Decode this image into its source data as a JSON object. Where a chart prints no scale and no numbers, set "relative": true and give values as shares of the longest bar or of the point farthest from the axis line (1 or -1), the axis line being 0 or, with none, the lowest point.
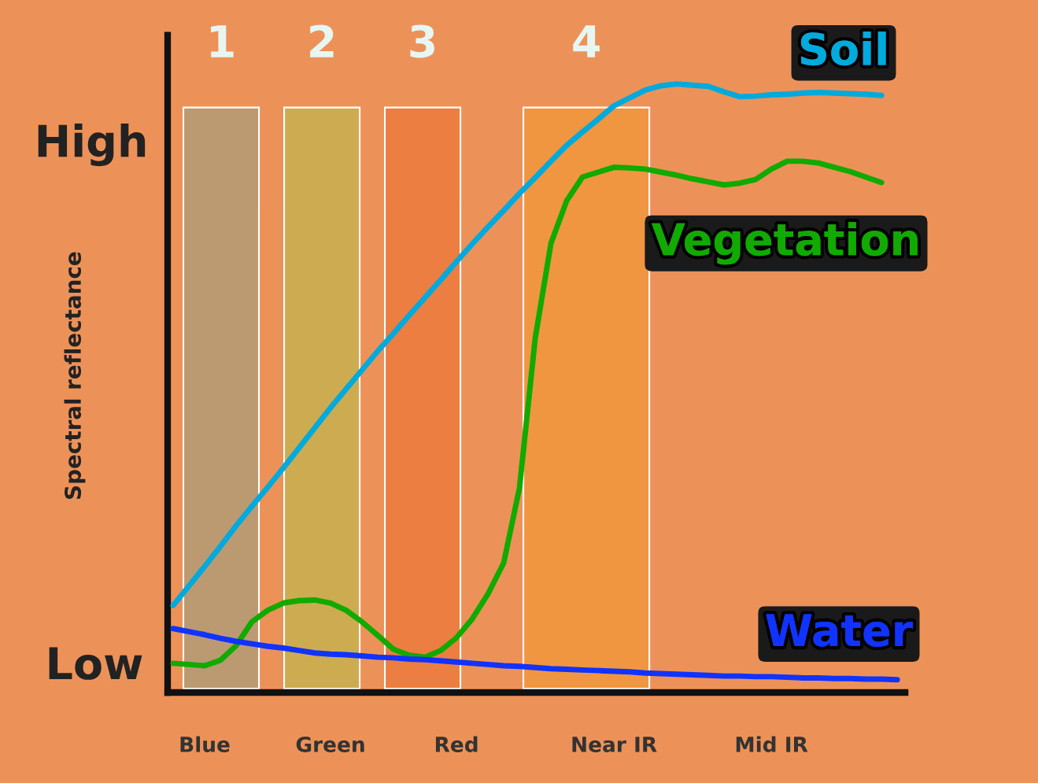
{
  "chart_data": {
    "type": "line",
    "relative": true,
    "ylabel": "Spectral reflectance",
    "categories": [
      null,
      null,
      "Blue",
      null,
      null,
      null,
      null,
      null,
      null,
      null,
      "Green",
      null,
      null,
      null,
      null,
      null,
      null,
      null,
      "Red",
      null,
      null,
      null,
      null,
      null,
      null,
      null,
      null,
      null,
      "Near IR",
      null,
      null,
      null,
      null,
      null,
      null,
      null,
      null,
      null,
      "Mid IR",
      null,
      null,
      null,
      null,
      null,
      null,
      null,
      null
    ],
    "annotations": [
      "High",
      "Low",
      "1",
      "2",
      "3",
      "4"
    ],
    "grid": false,
    "legend": false,
    "marker": "none",
    "line_style": "solid",
    "series": [
      {
        "name": "Soil",
        "color": "#00aadd",
        "values": [
          0.143,
          0.175,
          0.207,
          0.24,
          0.274,
          0.306,
          0.337,
          0.369,
          0.402,
          0.435,
          0.468,
          0.499,
          0.53,
          0.561,
          0.59,
          0.62,
          0.649,
          0.678,
          0.708,
          0.737,
          0.765,
          0.792,
          0.82,
          0.846,
          0.873,
          0.899,
          0.921,
          0.942,
          0.964,
          0.977,
          0.99,
          0.997,
          1.0,
          0.998,
          0.996,
          0.987,
          0.979,
          0.98,
          0.982,
          0.983,
          0.985,
          0.986,
          0.985,
          0.984,
          0.983,
          0.981,
          null
        ]
      },
      {
        "name": "Vegetation",
        "color": "#11aa00",
        "values": [
          0.048,
          0.046,
          0.044,
          0.053,
          0.077,
          0.116,
          0.135,
          0.147,
          0.151,
          0.152,
          0.147,
          0.135,
          0.116,
          0.094,
          0.071,
          0.061,
          0.058,
          0.069,
          0.09,
          0.121,
          0.162,
          0.213,
          0.336,
          0.582,
          0.738,
          0.808,
          0.847,
          0.855,
          0.863,
          0.862,
          0.86,
          0.855,
          0.85,
          0.844,
          0.839,
          0.834,
          0.837,
          0.843,
          0.86,
          0.873,
          0.873,
          0.87,
          0.863,
          0.856,
          0.847,
          0.838,
          null
        ]
      },
      {
        "name": "Water",
        "color": "#1133ff",
        "values": [
          0.105,
          0.1,
          0.095,
          0.089,
          0.084,
          0.08,
          0.076,
          0.073,
          0.069,
          0.065,
          0.063,
          0.062,
          0.06,
          0.058,
          0.057,
          0.055,
          0.054,
          0.052,
          0.05,
          0.048,
          0.046,
          0.044,
          0.043,
          0.041,
          0.039,
          0.038,
          0.037,
          0.036,
          0.035,
          0.034,
          0.032,
          0.031,
          0.03,
          0.029,
          0.028,
          0.027,
          0.027,
          0.026,
          0.026,
          0.025,
          0.024,
          0.024,
          0.023,
          0.023,
          0.022,
          0.022,
          0.021
        ]
      }
    ]
  }
}
